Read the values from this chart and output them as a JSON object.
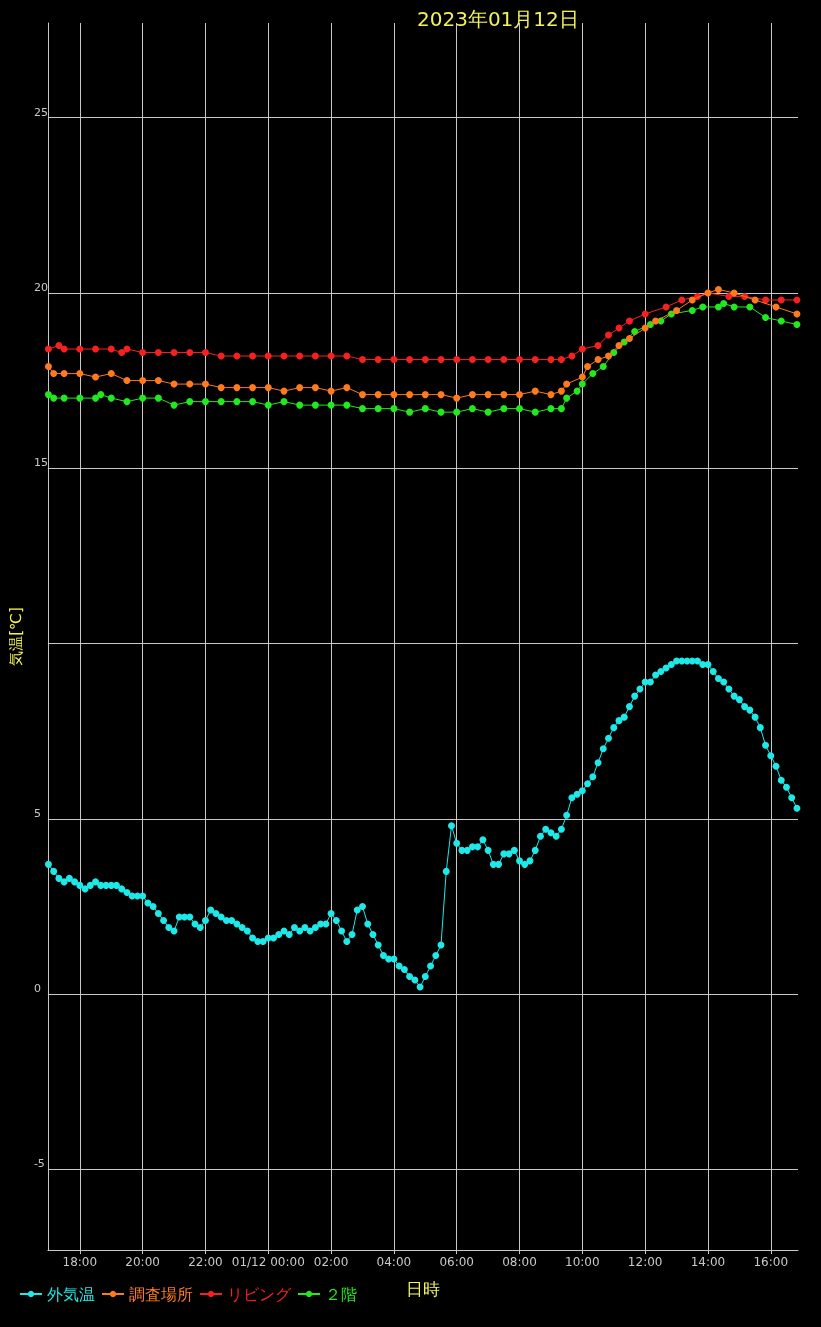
{
  "chart_data": {
    "type": "line",
    "title": "2023年01月12日",
    "xlabel": "日時",
    "ylabel": "気温[℃]",
    "xlim": [
      "2023-01-11T16:59",
      "2023-01-12T16:52"
    ],
    "ylim": [
      -7.3,
      27.7
    ],
    "xticks": [
      {
        "value": "2023-01-11T18:00",
        "label": "18:00"
      },
      {
        "value": "2023-01-11T20:00",
        "label": "20:00"
      },
      {
        "value": "2023-01-11T22:00",
        "label": "22:00"
      },
      {
        "value": "2023-01-12T00:00",
        "label": "01/12 00:00"
      },
      {
        "value": "2023-01-12T02:00",
        "label": "02:00"
      },
      {
        "value": "2023-01-12T04:00",
        "label": "04:00"
      },
      {
        "value": "2023-01-12T06:00",
        "label": "06:00"
      },
      {
        "value": "2023-01-12T08:00",
        "label": "08:00"
      },
      {
        "value": "2023-01-12T10:00",
        "label": "10:00"
      },
      {
        "value": "2023-01-12T12:00",
        "label": "12:00"
      },
      {
        "value": "2023-01-12T14:00",
        "label": "14:00"
      },
      {
        "value": "2023-01-12T16:00",
        "label": "16:00"
      }
    ],
    "yticks": [
      -5,
      0,
      5,
      {
        "value": 10,
        "label": null
      },
      15,
      20,
      25
    ],
    "grid": true,
    "legend": "bottom left",
    "marker": "circle",
    "line_style": "solid",
    "series": [
      {
        "name": "外気温",
        "color": "#1ee8e8",
        "x": [
          "2023-01-11T17:00",
          "2023-01-11T17:10",
          "2023-01-11T17:20",
          "2023-01-11T17:30",
          "2023-01-11T17:40",
          "2023-01-11T17:50",
          "2023-01-11T18:00",
          "2023-01-11T18:10",
          "2023-01-11T18:20",
          "2023-01-11T18:30",
          "2023-01-11T18:40",
          "2023-01-11T18:50",
          "2023-01-11T19:00",
          "2023-01-11T19:10",
          "2023-01-11T19:20",
          "2023-01-11T19:30",
          "2023-01-11T19:40",
          "2023-01-11T19:50",
          "2023-01-11T20:00",
          "2023-01-11T20:10",
          "2023-01-11T20:20",
          "2023-01-11T20:30",
          "2023-01-11T20:40",
          "2023-01-11T20:50",
          "2023-01-11T21:00",
          "2023-01-11T21:10",
          "2023-01-11T21:20",
          "2023-01-11T21:30",
          "2023-01-11T21:40",
          "2023-01-11T21:50",
          "2023-01-11T22:00",
          "2023-01-11T22:10",
          "2023-01-11T22:20",
          "2023-01-11T22:30",
          "2023-01-11T22:40",
          "2023-01-11T22:50",
          "2023-01-11T23:00",
          "2023-01-11T23:10",
          "2023-01-11T23:20",
          "2023-01-11T23:30",
          "2023-01-11T23:40",
          "2023-01-11T23:50",
          "2023-01-12T00:00",
          "2023-01-12T00:10",
          "2023-01-12T00:20",
          "2023-01-12T00:30",
          "2023-01-12T00:40",
          "2023-01-12T00:50",
          "2023-01-12T01:00",
          "2023-01-12T01:10",
          "2023-01-12T01:20",
          "2023-01-12T01:30",
          "2023-01-12T01:40",
          "2023-01-12T01:50",
          "2023-01-12T02:00",
          "2023-01-12T02:10",
          "2023-01-12T02:20",
          "2023-01-12T02:30",
          "2023-01-12T02:40",
          "2023-01-12T02:50",
          "2023-01-12T03:00",
          "2023-01-12T03:10",
          "2023-01-12T03:20",
          "2023-01-12T03:30",
          "2023-01-12T03:40",
          "2023-01-12T03:50",
          "2023-01-12T04:00",
          "2023-01-12T04:10",
          "2023-01-12T04:20",
          "2023-01-12T04:30",
          "2023-01-12T04:40",
          "2023-01-12T04:50",
          "2023-01-12T05:00",
          "2023-01-12T05:10",
          "2023-01-12T05:20",
          "2023-01-12T05:30",
          "2023-01-12T05:40",
          "2023-01-12T05:50",
          "2023-01-12T06:00",
          "2023-01-12T06:10",
          "2023-01-12T06:20",
          "2023-01-12T06:30",
          "2023-01-12T06:40",
          "2023-01-12T06:50",
          "2023-01-12T07:00",
          "2023-01-12T07:10",
          "2023-01-12T07:20",
          "2023-01-12T07:30",
          "2023-01-12T07:40",
          "2023-01-12T07:50",
          "2023-01-12T08:00",
          "2023-01-12T08:10",
          "2023-01-12T08:20",
          "2023-01-12T08:30",
          "2023-01-12T08:40",
          "2023-01-12T08:50",
          "2023-01-12T09:00",
          "2023-01-12T09:10",
          "2023-01-12T09:20",
          "2023-01-12T09:30",
          "2023-01-12T09:40",
          "2023-01-12T09:50",
          "2023-01-12T10:00",
          "2023-01-12T10:10",
          "2023-01-12T10:20",
          "2023-01-12T10:30",
          "2023-01-12T10:40",
          "2023-01-12T10:50",
          "2023-01-12T11:00",
          "2023-01-12T11:10",
          "2023-01-12T11:20",
          "2023-01-12T11:30",
          "2023-01-12T11:40",
          "2023-01-12T11:50",
          "2023-01-12T12:00",
          "2023-01-12T12:10",
          "2023-01-12T12:20",
          "2023-01-12T12:30",
          "2023-01-12T12:40",
          "2023-01-12T12:50",
          "2023-01-12T13:00",
          "2023-01-12T13:10",
          "2023-01-12T13:20",
          "2023-01-12T13:30",
          "2023-01-12T13:40",
          "2023-01-12T13:50",
          "2023-01-12T14:00",
          "2023-01-12T14:10",
          "2023-01-12T14:20",
          "2023-01-12T14:30",
          "2023-01-12T14:40",
          "2023-01-12T14:50",
          "2023-01-12T15:00",
          "2023-01-12T15:10",
          "2023-01-12T15:20",
          "2023-01-12T15:30",
          "2023-01-12T15:40",
          "2023-01-12T15:50",
          "2023-01-12T16:00",
          "2023-01-12T16:10",
          "2023-01-12T16:20",
          "2023-01-12T16:30",
          "2023-01-12T16:40",
          "2023-01-12T16:50"
        ],
        "values": [
          3.7,
          3.5,
          3.3,
          3.2,
          3.3,
          3.2,
          3.1,
          3.0,
          3.1,
          3.2,
          3.1,
          3.1,
          3.1,
          3.1,
          3.0,
          2.9,
          2.8,
          2.8,
          2.8,
          2.6,
          2.5,
          2.3,
          2.1,
          1.9,
          1.8,
          2.2,
          2.2,
          2.2,
          2.0,
          1.9,
          2.1,
          2.4,
          2.3,
          2.2,
          2.1,
          2.1,
          2.0,
          1.9,
          1.8,
          1.6,
          1.5,
          1.5,
          1.6,
          1.6,
          1.7,
          1.8,
          1.7,
          1.9,
          1.8,
          1.9,
          1.8,
          1.9,
          2.0,
          2.0,
          2.3,
          2.1,
          1.8,
          1.5,
          1.7,
          2.4,
          2.5,
          2.0,
          1.7,
          1.4,
          1.1,
          1.0,
          1.0,
          0.8,
          0.7,
          0.5,
          0.4,
          0.2,
          0.5,
          0.8,
          1.1,
          1.4,
          3.5,
          4.8,
          4.3,
          4.1,
          4.1,
          4.2,
          4.2,
          4.4,
          4.1,
          3.7,
          3.7,
          4.0,
          4.0,
          4.1,
          3.8,
          3.7,
          3.8,
          4.1,
          4.5,
          4.7,
          4.6,
          4.5,
          4.7,
          5.1,
          5.6,
          5.7,
          5.8,
          6.0,
          6.2,
          6.6,
          7.0,
          7.3,
          7.6,
          7.8,
          7.9,
          8.2,
          8.5,
          8.7,
          8.9,
          8.9,
          9.1,
          9.2,
          9.3,
          9.4,
          9.5,
          9.5,
          9.5,
          9.5,
          9.5,
          9.4,
          9.4,
          9.2,
          9.0,
          8.9,
          8.7,
          8.5,
          8.4,
          8.2,
          8.1,
          7.9,
          7.6,
          7.1,
          6.8,
          6.5,
          6.1,
          5.9,
          5.6,
          5.3
        ]
      },
      {
        "name": "調査場所",
        "color": "#ff7a1c",
        "x": [
          "2023-01-11T17:00",
          "2023-01-11T17:10",
          "2023-01-11T17:30",
          "2023-01-11T18:00",
          "2023-01-11T18:30",
          "2023-01-11T19:00",
          "2023-01-11T19:30",
          "2023-01-11T20:00",
          "2023-01-11T20:30",
          "2023-01-11T21:00",
          "2023-01-11T21:30",
          "2023-01-11T22:00",
          "2023-01-11T22:30",
          "2023-01-11T23:00",
          "2023-01-11T23:30",
          "2023-01-12T00:00",
          "2023-01-12T00:30",
          "2023-01-12T01:00",
          "2023-01-12T01:30",
          "2023-01-12T02:00",
          "2023-01-12T02:30",
          "2023-01-12T03:00",
          "2023-01-12T03:30",
          "2023-01-12T04:00",
          "2023-01-12T04:30",
          "2023-01-12T05:00",
          "2023-01-12T05:30",
          "2023-01-12T06:00",
          "2023-01-12T06:30",
          "2023-01-12T07:00",
          "2023-01-12T07:30",
          "2023-01-12T08:00",
          "2023-01-12T08:30",
          "2023-01-12T09:00",
          "2023-01-12T09:20",
          "2023-01-12T09:30",
          "2023-01-12T10:00",
          "2023-01-12T10:10",
          "2023-01-12T10:30",
          "2023-01-12T10:50",
          "2023-01-12T11:10",
          "2023-01-12T11:30",
          "2023-01-12T12:00",
          "2023-01-12T12:20",
          "2023-01-12T13:00",
          "2023-01-12T13:30",
          "2023-01-12T14:00",
          "2023-01-12T14:20",
          "2023-01-12T14:50",
          "2023-01-12T15:30",
          "2023-01-12T16:10",
          "2023-01-12T16:50"
        ],
        "values": [
          17.9,
          17.7,
          17.7,
          17.7,
          17.6,
          17.7,
          17.5,
          17.5,
          17.5,
          17.4,
          17.4,
          17.4,
          17.3,
          17.3,
          17.3,
          17.3,
          17.2,
          17.3,
          17.3,
          17.2,
          17.3,
          17.1,
          17.1,
          17.1,
          17.1,
          17.1,
          17.1,
          17.0,
          17.1,
          17.1,
          17.1,
          17.1,
          17.2,
          17.1,
          17.2,
          17.4,
          17.6,
          17.9,
          18.1,
          18.2,
          18.5,
          18.7,
          19.0,
          19.2,
          19.5,
          19.8,
          20.0,
          20.1,
          20.0,
          19.8,
          19.6,
          19.4
        ]
      },
      {
        "name": "リビング",
        "color": "#f52020",
        "x": [
          "2023-01-11T17:00",
          "2023-01-11T17:20",
          "2023-01-11T17:30",
          "2023-01-11T18:00",
          "2023-01-11T18:30",
          "2023-01-11T19:00",
          "2023-01-11T19:20",
          "2023-01-11T19:30",
          "2023-01-11T20:00",
          "2023-01-11T20:30",
          "2023-01-11T21:00",
          "2023-01-11T21:30",
          "2023-01-11T22:00",
          "2023-01-11T22:30",
          "2023-01-11T23:00",
          "2023-01-11T23:30",
          "2023-01-12T00:00",
          "2023-01-12T00:30",
          "2023-01-12T01:00",
          "2023-01-12T01:30",
          "2023-01-12T02:00",
          "2023-01-12T02:30",
          "2023-01-12T03:00",
          "2023-01-12T03:30",
          "2023-01-12T04:00",
          "2023-01-12T04:30",
          "2023-01-12T05:00",
          "2023-01-12T05:30",
          "2023-01-12T06:00",
          "2023-01-12T06:30",
          "2023-01-12T07:00",
          "2023-01-12T07:30",
          "2023-01-12T08:00",
          "2023-01-12T08:30",
          "2023-01-12T09:00",
          "2023-01-12T09:20",
          "2023-01-12T09:40",
          "2023-01-12T10:00",
          "2023-01-12T10:30",
          "2023-01-12T10:50",
          "2023-01-12T11:10",
          "2023-01-12T11:30",
          "2023-01-12T12:00",
          "2023-01-12T12:40",
          "2023-01-12T13:10",
          "2023-01-12T13:40",
          "2023-01-12T14:00",
          "2023-01-12T14:40",
          "2023-01-12T15:10",
          "2023-01-12T15:50",
          "2023-01-12T16:20",
          "2023-01-12T16:50"
        ],
        "values": [
          18.4,
          18.5,
          18.4,
          18.4,
          18.4,
          18.4,
          18.3,
          18.4,
          18.3,
          18.3,
          18.3,
          18.3,
          18.3,
          18.2,
          18.2,
          18.2,
          18.2,
          18.2,
          18.2,
          18.2,
          18.2,
          18.2,
          18.1,
          18.1,
          18.1,
          18.1,
          18.1,
          18.1,
          18.1,
          18.1,
          18.1,
          18.1,
          18.1,
          18.1,
          18.1,
          18.1,
          18.2,
          18.4,
          18.5,
          18.8,
          19.0,
          19.2,
          19.4,
          19.6,
          19.8,
          19.9,
          20.0,
          19.9,
          19.9,
          19.8,
          19.8,
          19.8
        ]
      },
      {
        "name": "２階",
        "color": "#22e81e",
        "x": [
          "2023-01-11T17:00",
          "2023-01-11T17:10",
          "2023-01-11T17:30",
          "2023-01-11T18:00",
          "2023-01-11T18:30",
          "2023-01-11T18:40",
          "2023-01-11T19:00",
          "2023-01-11T19:30",
          "2023-01-11T20:00",
          "2023-01-11T20:30",
          "2023-01-11T21:00",
          "2023-01-11T21:30",
          "2023-01-11T22:00",
          "2023-01-11T22:30",
          "2023-01-11T23:00",
          "2023-01-11T23:30",
          "2023-01-12T00:00",
          "2023-01-12T00:30",
          "2023-01-12T01:00",
          "2023-01-12T01:30",
          "2023-01-12T02:00",
          "2023-01-12T02:30",
          "2023-01-12T03:00",
          "2023-01-12T03:30",
          "2023-01-12T04:00",
          "2023-01-12T04:30",
          "2023-01-12T05:00",
          "2023-01-12T05:30",
          "2023-01-12T06:00",
          "2023-01-12T06:30",
          "2023-01-12T07:00",
          "2023-01-12T07:30",
          "2023-01-12T08:00",
          "2023-01-12T08:30",
          "2023-01-12T09:00",
          "2023-01-12T09:20",
          "2023-01-12T09:30",
          "2023-01-12T09:50",
          "2023-01-12T10:00",
          "2023-01-12T10:20",
          "2023-01-12T10:40",
          "2023-01-12T11:00",
          "2023-01-12T11:20",
          "2023-01-12T11:40",
          "2023-01-12T12:10",
          "2023-01-12T12:30",
          "2023-01-12T12:50",
          "2023-01-12T13:30",
          "2023-01-12T13:50",
          "2023-01-12T14:20",
          "2023-01-12T14:30",
          "2023-01-12T14:50",
          "2023-01-12T15:20",
          "2023-01-12T15:50",
          "2023-01-12T16:20",
          "2023-01-12T16:50"
        ],
        "values": [
          17.1,
          17.0,
          17.0,
          17.0,
          17.0,
          17.1,
          17.0,
          16.9,
          17.0,
          17.0,
          16.8,
          16.9,
          16.9,
          16.9,
          16.9,
          16.9,
          16.8,
          16.9,
          16.8,
          16.8,
          16.8,
          16.8,
          16.7,
          16.7,
          16.7,
          16.6,
          16.7,
          16.6,
          16.6,
          16.7,
          16.6,
          16.7,
          16.7,
          16.6,
          16.7,
          16.7,
          17.0,
          17.2,
          17.4,
          17.7,
          17.9,
          18.3,
          18.6,
          18.9,
          19.1,
          19.2,
          19.4,
          19.5,
          19.6,
          19.6,
          19.7,
          19.6,
          19.6,
          19.3,
          19.2,
          19.1
        ]
      }
    ]
  }
}
